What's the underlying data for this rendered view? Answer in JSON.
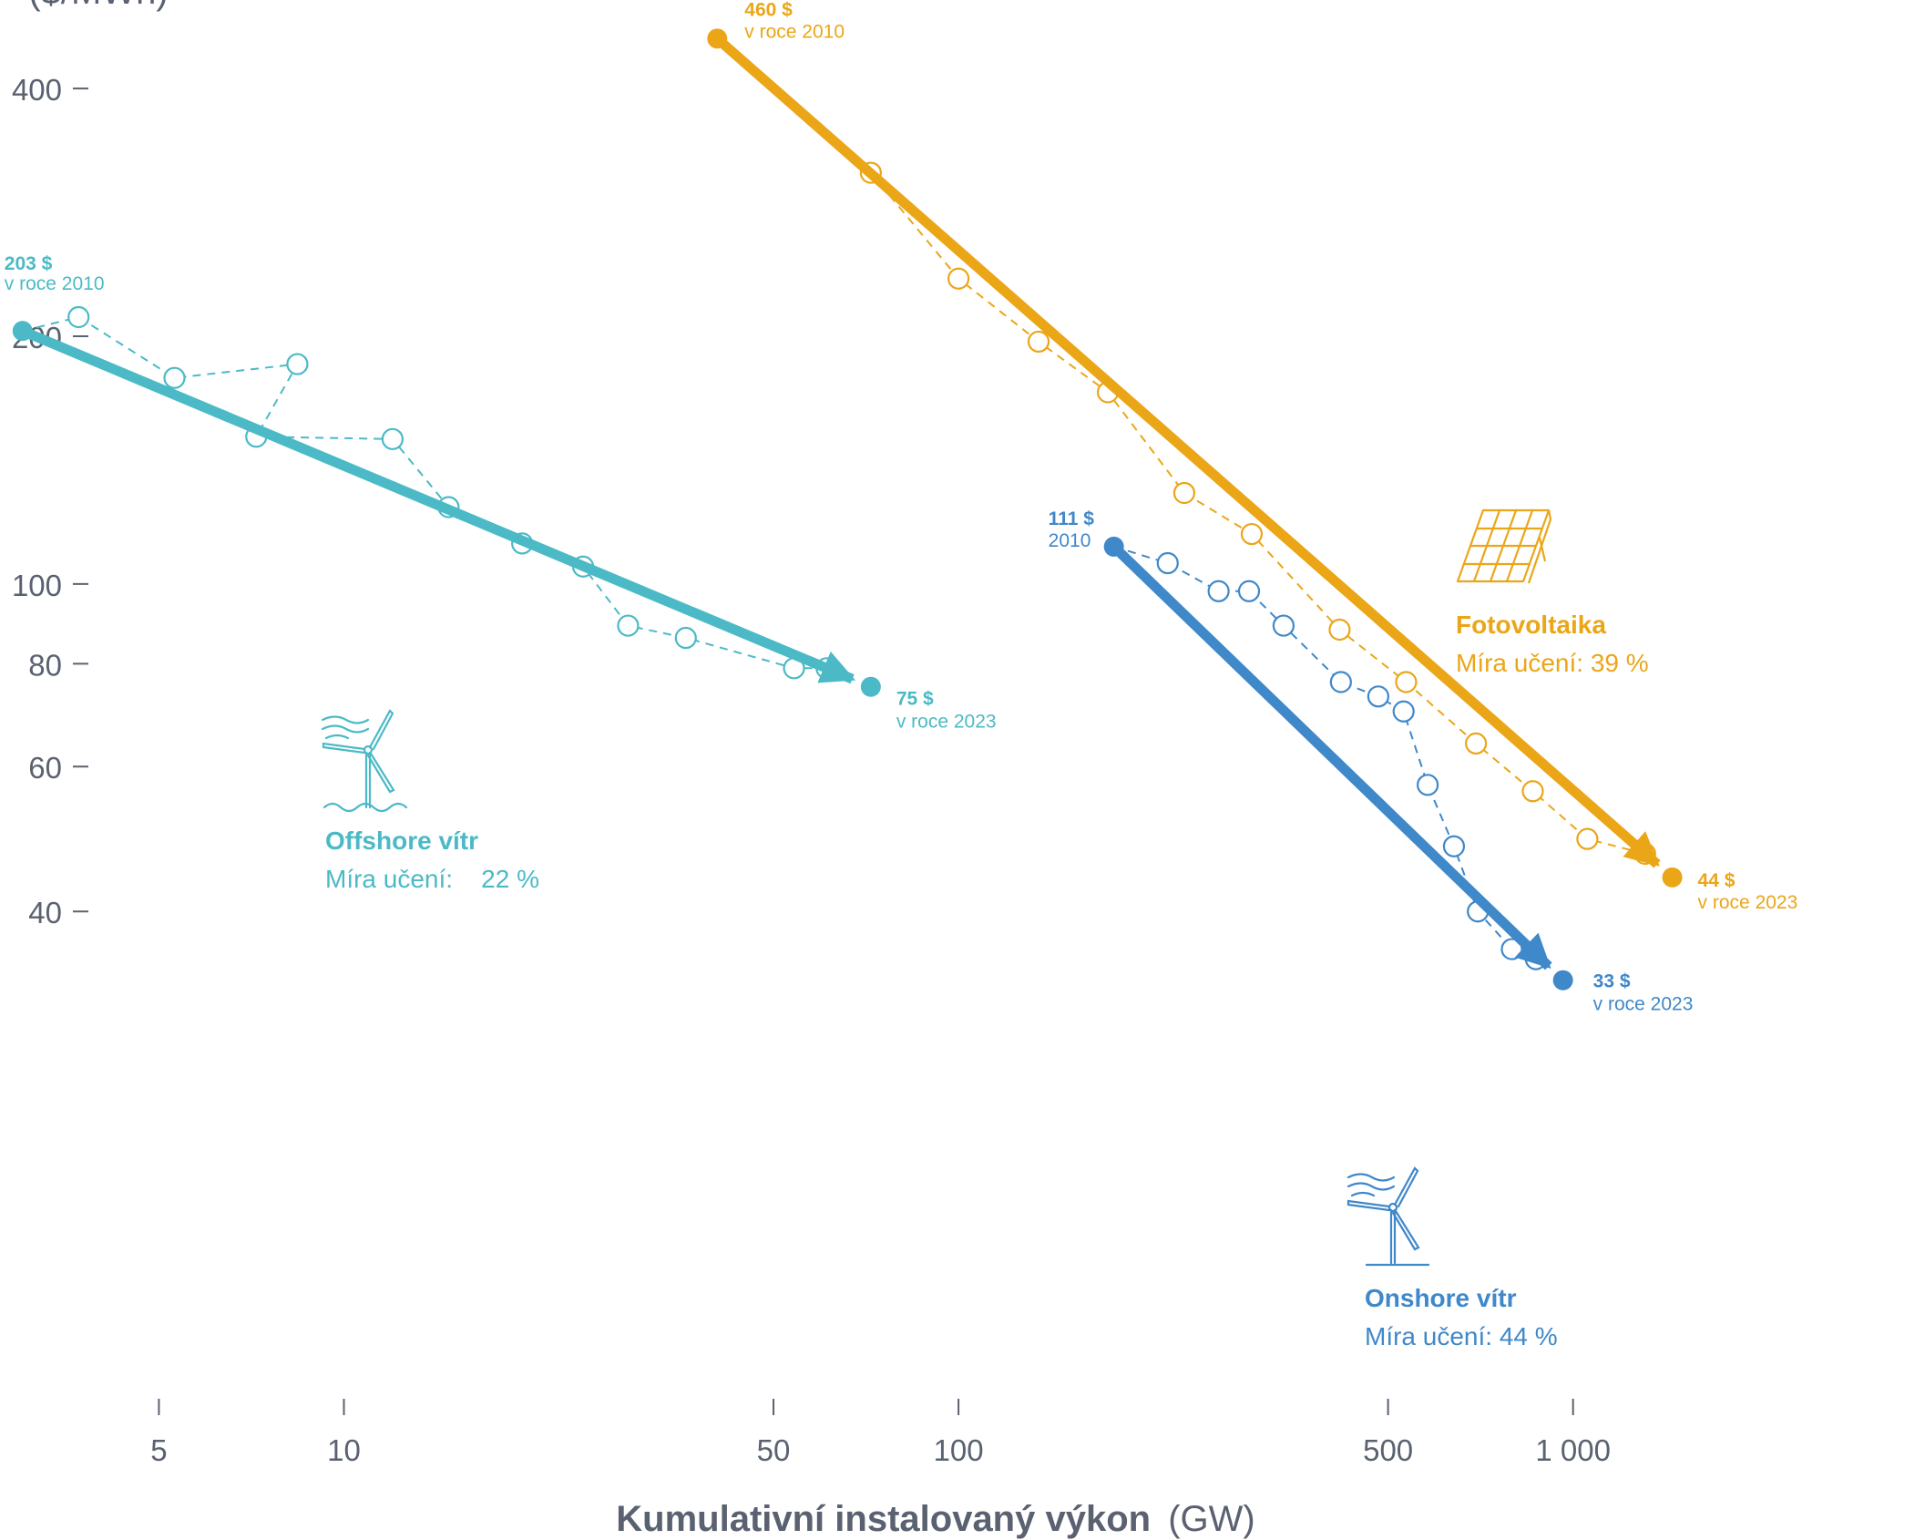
{
  "chart_data": {
    "type": "line",
    "x_scale": "log",
    "y_scale": "log",
    "xlim": [
      3.5,
      2200
    ],
    "ylim": [
      31,
      520
    ],
    "ylabel": "($/MWh)",
    "xlabel": {
      "bold": "Kumulativní instalovaný výkon",
      "regular": "(GW)"
    },
    "yticks": [
      {
        "value": 400,
        "label": "400"
      },
      {
        "value": 200,
        "label": "200"
      },
      {
        "value": 100,
        "label": "100"
      },
      {
        "value": 80,
        "label": "80"
      },
      {
        "value": 60,
        "label": "60"
      },
      {
        "value": 40,
        "label": "40"
      }
    ],
    "xticks": [
      {
        "value": 5,
        "label": "5"
      },
      {
        "value": 10,
        "label": "10"
      },
      {
        "value": 50,
        "label": "50"
      },
      {
        "value": 100,
        "label": "100"
      },
      {
        "value": 500,
        "label": "500"
      },
      {
        "value": 1000,
        "label": "1 000"
      }
    ],
    "colors": {
      "axis_text": "#5a6271",
      "offshore": "#4bbac6",
      "solar": "#eba618",
      "onshore": "#3f88c9"
    },
    "series": [
      {
        "key": "offshore",
        "name": "Offshore vítr",
        "subtitle": "Míra učení:    22 %",
        "icon": "offshore-wind-turbine-icon",
        "start": {
          "x": 3.0,
          "y": 203,
          "value_label": "203 $",
          "year_label": "v roce 2010"
        },
        "end": {
          "x": 72,
          "y": 75,
          "value_label": "75 $",
          "year_label": "v roce 2023"
        },
        "points": [
          {
            "x": 3.0,
            "y": 203
          },
          {
            "x": 3.7,
            "y": 211
          },
          {
            "x": 5.3,
            "y": 178
          },
          {
            "x": 8.4,
            "y": 185
          },
          {
            "x": 7.2,
            "y": 151
          },
          {
            "x": 12.0,
            "y": 150
          },
          {
            "x": 14.8,
            "y": 124
          },
          {
            "x": 19.5,
            "y": 112
          },
          {
            "x": 24.5,
            "y": 105
          },
          {
            "x": 29.0,
            "y": 89
          },
          {
            "x": 36.0,
            "y": 86
          },
          {
            "x": 54.0,
            "y": 79
          },
          {
            "x": 61.0,
            "y": 79
          }
        ]
      },
      {
        "key": "solar",
        "name": "Fotovoltaika",
        "subtitle": "Míra učení: 39 %",
        "icon": "solar-panel-icon",
        "start": {
          "x": 40.5,
          "y": 460,
          "value_label": "460 $",
          "year_label": "v roce 2010"
        },
        "end": {
          "x": 1450,
          "y": 44,
          "value_label": "44 $",
          "year_label": "v roce 2023"
        },
        "points": [
          {
            "x": 40.5,
            "y": 460
          },
          {
            "x": 72,
            "y": 316
          },
          {
            "x": 100,
            "y": 235
          },
          {
            "x": 135,
            "y": 197
          },
          {
            "x": 175,
            "y": 171
          },
          {
            "x": 233,
            "y": 129
          },
          {
            "x": 300,
            "y": 115
          },
          {
            "x": 417,
            "y": 88
          },
          {
            "x": 535,
            "y": 76
          },
          {
            "x": 695,
            "y": 64
          },
          {
            "x": 860,
            "y": 56
          },
          {
            "x": 1055,
            "y": 49
          },
          {
            "x": 1310,
            "y": 47
          }
        ]
      },
      {
        "key": "onshore",
        "name": "Onshore vítr",
        "subtitle": "Míra učení: 44 %",
        "icon": "onshore-wind-turbine-icon",
        "start": {
          "x": 179,
          "y": 111,
          "value_label": "111 $",
          "year_label": "2010"
        },
        "end": {
          "x": 963,
          "y": 33,
          "value_label": "33 $",
          "year_label": "v roce 2023"
        },
        "points": [
          {
            "x": 179,
            "y": 111
          },
          {
            "x": 219,
            "y": 106
          },
          {
            "x": 265,
            "y": 98
          },
          {
            "x": 297,
            "y": 98
          },
          {
            "x": 338,
            "y": 89
          },
          {
            "x": 419,
            "y": 76
          },
          {
            "x": 482,
            "y": 73
          },
          {
            "x": 530,
            "y": 70
          },
          {
            "x": 580,
            "y": 57
          },
          {
            "x": 640,
            "y": 48
          },
          {
            "x": 700,
            "y": 40
          },
          {
            "x": 795,
            "y": 36
          },
          {
            "x": 870,
            "y": 35
          }
        ]
      }
    ]
  }
}
